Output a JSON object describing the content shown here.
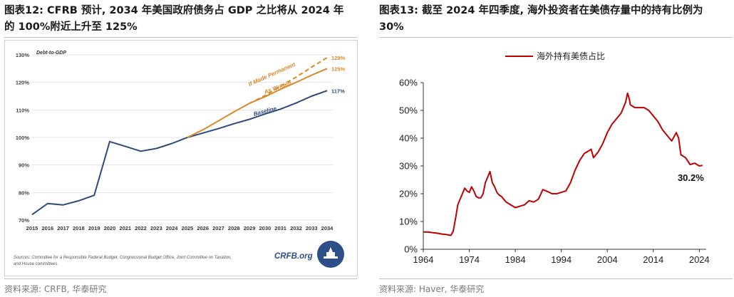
{
  "left_panel": {
    "title_line1": "图表12: CFRB 预计, 2034 年美国政府债务占 GDP 之比将从 2024 年",
    "title_line2": "的 100%附近上升至 125%",
    "source": "资料来源: CRFB, 华泰研究"
  },
  "right_panel": {
    "title_line1": "图表13: 截至 2024 年四季度, 海外投资者在美债存量中的持有比例为",
    "title_line2": "30%",
    "source": "资料来源: Haver, 华泰研究"
  },
  "chart_data": [
    {
      "type": "line",
      "inner_label": "Debt-to-GDP",
      "x": [
        2015,
        2016,
        2017,
        2018,
        2019,
        2020,
        2021,
        2022,
        2023,
        2024,
        2025,
        2026,
        2027,
        2028,
        2029,
        2030,
        2031,
        2032,
        2033,
        2034
      ],
      "x_ticks": [
        "2015",
        "2016",
        "2017",
        "2018",
        "2019",
        "2020",
        "2021",
        "2022",
        "2023",
        "2024",
        "2025",
        "2026",
        "2027",
        "2028",
        "2029",
        "2030",
        "2031",
        "2032",
        "2033",
        "2034"
      ],
      "y_ticks": [
        "70%",
        "80%",
        "90%",
        "100%",
        "110%",
        "120%",
        "130%"
      ],
      "ylim": [
        70,
        130
      ],
      "grid": true,
      "series": [
        {
          "name": "Baseline",
          "color": "#2e4a7a",
          "dash": false,
          "values": [
            72,
            76,
            75.5,
            77,
            79,
            98.5,
            96.8,
            95,
            96,
            97.8,
            100,
            101.6,
            103.2,
            105,
            106.6,
            108.5,
            110.3,
            112.5,
            115,
            117
          ]
        },
        {
          "name": "As Written",
          "color": "#d8892c",
          "dash": false,
          "values": [
            null,
            null,
            null,
            null,
            null,
            null,
            null,
            null,
            null,
            null,
            100,
            102.8,
            106,
            109.3,
            112.4,
            114.8,
            117.5,
            120,
            122.6,
            125
          ]
        },
        {
          "name": "If Made Permanent",
          "color": "#d8892c",
          "dash": true,
          "values": [
            null,
            null,
            null,
            null,
            null,
            null,
            null,
            null,
            null,
            null,
            null,
            null,
            null,
            null,
            112.4,
            115.2,
            118.6,
            121.9,
            125.5,
            129
          ]
        }
      ],
      "end_labels": [
        "117%",
        "125%",
        "129%"
      ],
      "footnote": "Sources: Committee for a Responsible Federal Budget, Congressional Budget Office, Joint Committee on Taxation, and House committees.",
      "logo_text": "CRFB.org"
    },
    {
      "type": "line",
      "legend": "海外持有美债占比",
      "legend_position": "top-center",
      "x_ticks": [
        "1964",
        "1974",
        "1984",
        "1994",
        "2004",
        "2014",
        "2024"
      ],
      "y_ticks": [
        "0%",
        "10%",
        "20%",
        "30%",
        "40%",
        "50%",
        "60%"
      ],
      "xlim": [
        1964,
        2025.5
      ],
      "ylim": [
        0,
        60
      ],
      "grid": false,
      "series": [
        {
          "name": "海外持有美债占比",
          "color": "#c00000",
          "points": [
            [
              1964,
              6.2
            ],
            [
              1965,
              6.2
            ],
            [
              1966,
              6.0
            ],
            [
              1967,
              5.8
            ],
            [
              1968,
              5.5
            ],
            [
              1969,
              5.3
            ],
            [
              1970,
              5.0
            ],
            [
              1970.5,
              6.5
            ],
            [
              1971,
              11
            ],
            [
              1971.5,
              16
            ],
            [
              1972,
              18
            ],
            [
              1972.5,
              20
            ],
            [
              1973,
              22
            ],
            [
              1973.5,
              21
            ],
            [
              1974,
              20.5
            ],
            [
              1974.5,
              22.5
            ],
            [
              1975,
              21
            ],
            [
              1975.5,
              19
            ],
            [
              1976,
              18.5
            ],
            [
              1976.5,
              18.5
            ],
            [
              1977,
              20
            ],
            [
              1977.5,
              24
            ],
            [
              1978,
              26
            ],
            [
              1978.5,
              28
            ],
            [
              1979,
              24
            ],
            [
              1979.5,
              22.5
            ],
            [
              1980,
              20.5
            ],
            [
              1980.5,
              19.5
            ],
            [
              1981,
              19
            ],
            [
              1982,
              17
            ],
            [
              1983,
              16
            ],
            [
              1984,
              15
            ],
            [
              1985,
              15.5
            ],
            [
              1986,
              16
            ],
            [
              1987,
              17.5
            ],
            [
              1988,
              17
            ],
            [
              1989,
              18
            ],
            [
              1990,
              21.5
            ],
            [
              1991,
              20.8
            ],
            [
              1992,
              20
            ],
            [
              1993,
              20
            ],
            [
              1994,
              20.5
            ],
            [
              1995,
              21
            ],
            [
              1996,
              24
            ],
            [
              1997,
              28.5
            ],
            [
              1998,
              32
            ],
            [
              1999,
              34.5
            ],
            [
              2000,
              35.5
            ],
            [
              2000.5,
              36
            ],
            [
              2001,
              33
            ],
            [
              2002,
              35
            ],
            [
              2003,
              38
            ],
            [
              2004,
              42
            ],
            [
              2005,
              45
            ],
            [
              2006,
              47
            ],
            [
              2007,
              49
            ],
            [
              2008,
              53
            ],
            [
              2008.4,
              56.2
            ],
            [
              2008.8,
              54
            ],
            [
              2009,
              52
            ],
            [
              2010,
              51
            ],
            [
              2011,
              51
            ],
            [
              2012,
              51
            ],
            [
              2013,
              50
            ],
            [
              2014,
              48
            ],
            [
              2015,
              46
            ],
            [
              2016,
              43
            ],
            [
              2017,
              41
            ],
            [
              2018,
              39
            ],
            [
              2019,
              42
            ],
            [
              2019.5,
              40
            ],
            [
              2020,
              34
            ],
            [
              2021,
              33
            ],
            [
              2022,
              30.5
            ],
            [
              2023,
              31
            ],
            [
              2024,
              30
            ],
            [
              2024.7,
              30.2
            ]
          ]
        }
      ],
      "annotation": "30.2%"
    }
  ]
}
